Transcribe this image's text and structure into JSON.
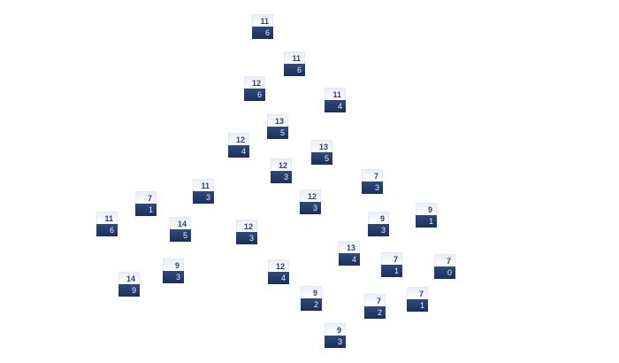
{
  "colors": {
    "node_top": "#e9eef8",
    "node_bottom": "#1f3462",
    "top_text": "#2d4373",
    "bottom_text": "#e8eef8"
  },
  "nodes": [
    {
      "top": "11",
      "bottom": "6"
    },
    {
      "top": "11",
      "bottom": "6"
    },
    {
      "top": "12",
      "bottom": "6"
    },
    {
      "top": "11",
      "bottom": "4"
    },
    {
      "top": "13",
      "bottom": "5"
    },
    {
      "top": "12",
      "bottom": "4"
    },
    {
      "top": "13",
      "bottom": "5"
    },
    {
      "top": "12",
      "bottom": "3"
    },
    {
      "top": "7",
      "bottom": "3"
    },
    {
      "top": "11",
      "bottom": "3"
    },
    {
      "top": "7",
      "bottom": "1"
    },
    {
      "top": "12",
      "bottom": "3"
    },
    {
      "top": "9",
      "bottom": "1"
    },
    {
      "top": "11",
      "bottom": "6"
    },
    {
      "top": "9",
      "bottom": "3"
    },
    {
      "top": "14",
      "bottom": "5"
    },
    {
      "top": "12",
      "bottom": "3"
    },
    {
      "top": "13",
      "bottom": "4"
    },
    {
      "top": "7",
      "bottom": "1"
    },
    {
      "top": "7",
      "bottom": "0"
    },
    {
      "top": "9",
      "bottom": "3"
    },
    {
      "top": "12",
      "bottom": "4"
    },
    {
      "top": "14",
      "bottom": "9"
    },
    {
      "top": "7",
      "bottom": "1"
    },
    {
      "top": "9",
      "bottom": "2"
    },
    {
      "top": "7",
      "bottom": "2"
    },
    {
      "top": "9",
      "bottom": "3"
    }
  ]
}
